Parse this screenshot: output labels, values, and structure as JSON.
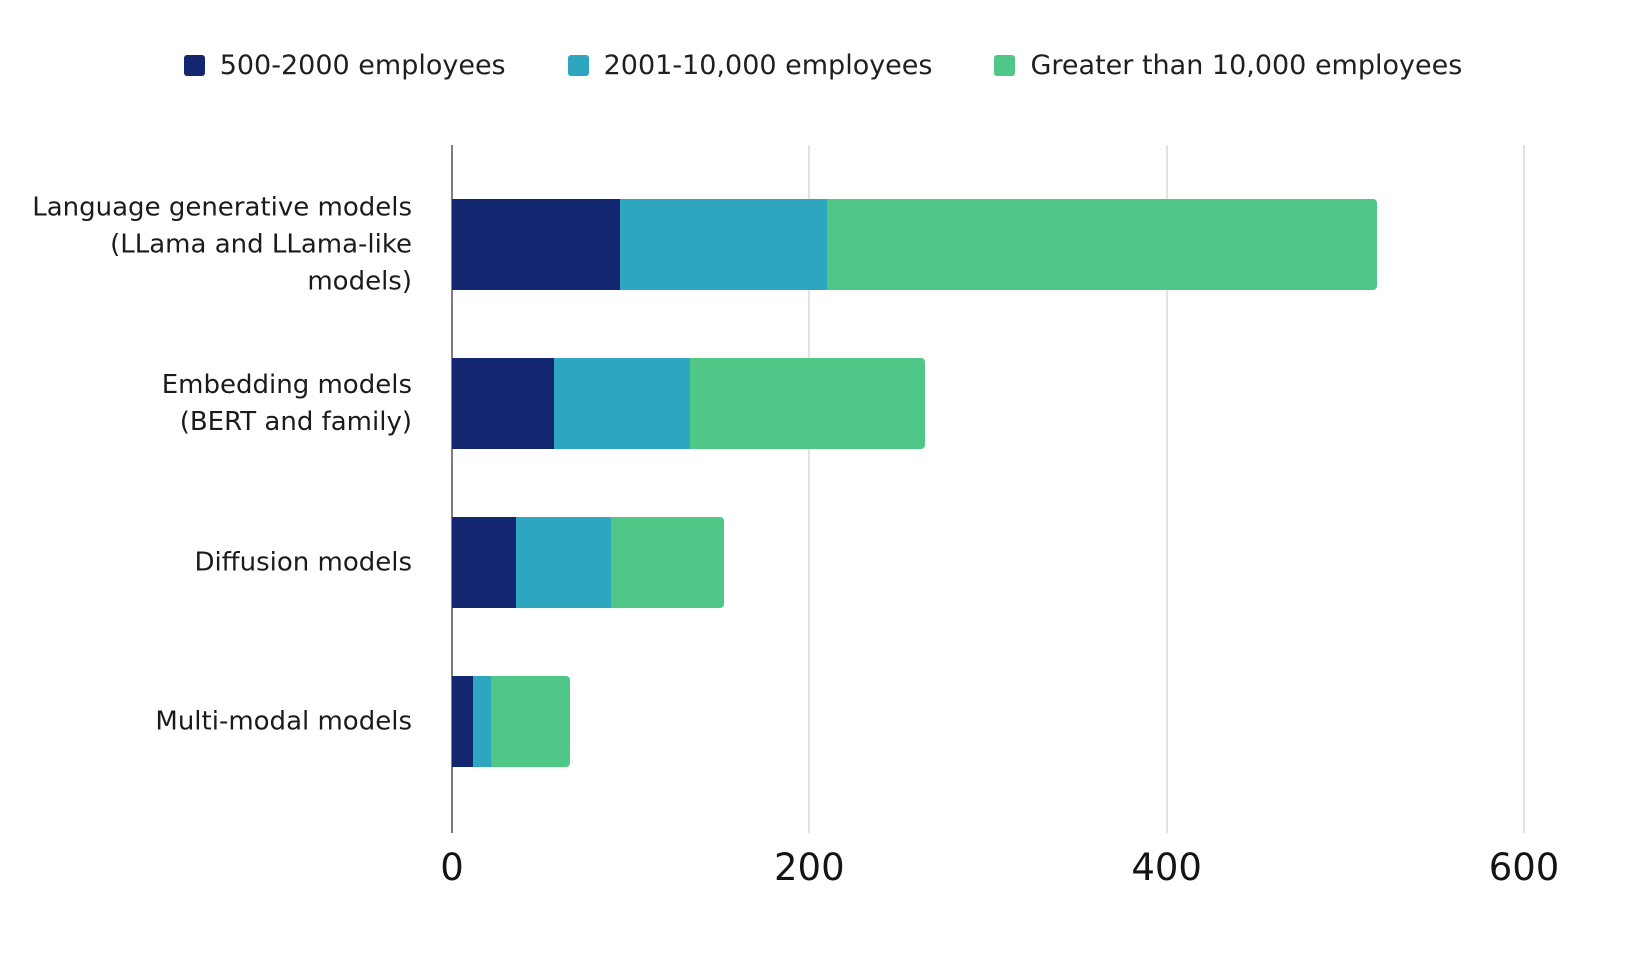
{
  "chart_data": {
    "type": "bar",
    "orientation": "horizontal",
    "stacked": true,
    "title": "",
    "xlabel": "",
    "ylabel": "",
    "grid": "vertical-gridlines-on",
    "legend_position": "top",
    "categories": [
      "Language generative models (LLama and LLama-like models)",
      "Embedding models (BERT and family)",
      "Diffusion models",
      "Multi-modal models"
    ],
    "category_label_lines": [
      [
        "Language generative models",
        "(LLama and LLama-like",
        "models)"
      ],
      [
        "Embedding models",
        "(BERT and family)"
      ],
      [
        "Diffusion models"
      ],
      [
        "Multi-modal models"
      ]
    ],
    "series": [
      {
        "name": "500-2000 employees",
        "color": "#12276F",
        "values": [
          94,
          57,
          36,
          12
        ]
      },
      {
        "name": "2001-10,000 employees",
        "color": "#2FA6BF",
        "values": [
          116,
          76,
          53,
          10
        ]
      },
      {
        "name": "Greater than 10,000 employees",
        "color": "#50C687",
        "values": [
          308,
          132,
          63,
          44
        ]
      }
    ],
    "totals": [
      518,
      265,
      152,
      66
    ],
    "x_axis": {
      "ticks": [
        "0",
        "200",
        "400",
        "600"
      ],
      "tick_values": [
        0,
        200,
        400,
        600
      ],
      "min": 0,
      "max": 640
    },
    "colors": {
      "axis_line": "#7d7d7d",
      "gridline": "#e2e2e2",
      "text": "#1b1b1b",
      "background": "#ffffff"
    }
  }
}
